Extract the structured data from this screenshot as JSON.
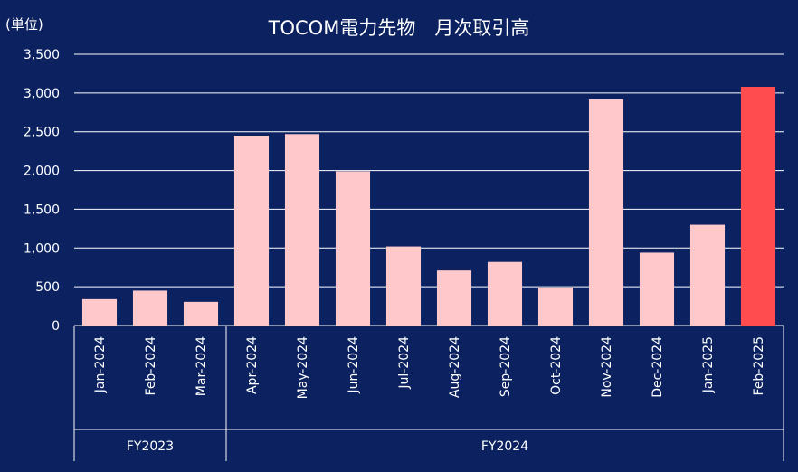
{
  "chart_data": {
    "type": "bar",
    "title": "TOCOM電力先物　月次取引高",
    "unit_label": "(単位)",
    "categories": [
      "Jan-2024",
      "Feb-2024",
      "Mar-2024",
      "Apr-2024",
      "May-2024",
      "Jun-2024",
      "Jul-2024",
      "Aug-2024",
      "Sep-2024",
      "Oct-2024",
      "Nov-2024",
      "Dec-2024",
      "Jan-2025",
      "Feb-2025"
    ],
    "values": [
      340,
      450,
      305,
      2450,
      2470,
      1990,
      1020,
      710,
      820,
      490,
      2920,
      940,
      1300,
      3080
    ],
    "yticks": [
      "0",
      "500",
      "1,000",
      "1,500",
      "2,000",
      "2,500",
      "3,000",
      "3,500"
    ],
    "ylim": [
      0,
      3500
    ],
    "groups": [
      {
        "label": "FY2023",
        "start": 0,
        "end": 2
      },
      {
        "label": "FY2024",
        "start": 3,
        "end": 13
      }
    ],
    "grid": true,
    "colors": {
      "background": "#0b2160",
      "bar": "#ffc9cc",
      "highlight_bar": "#ff4d4f",
      "grid": "#ffffff",
      "text": "#ffffff"
    },
    "highlight_index": 13
  }
}
